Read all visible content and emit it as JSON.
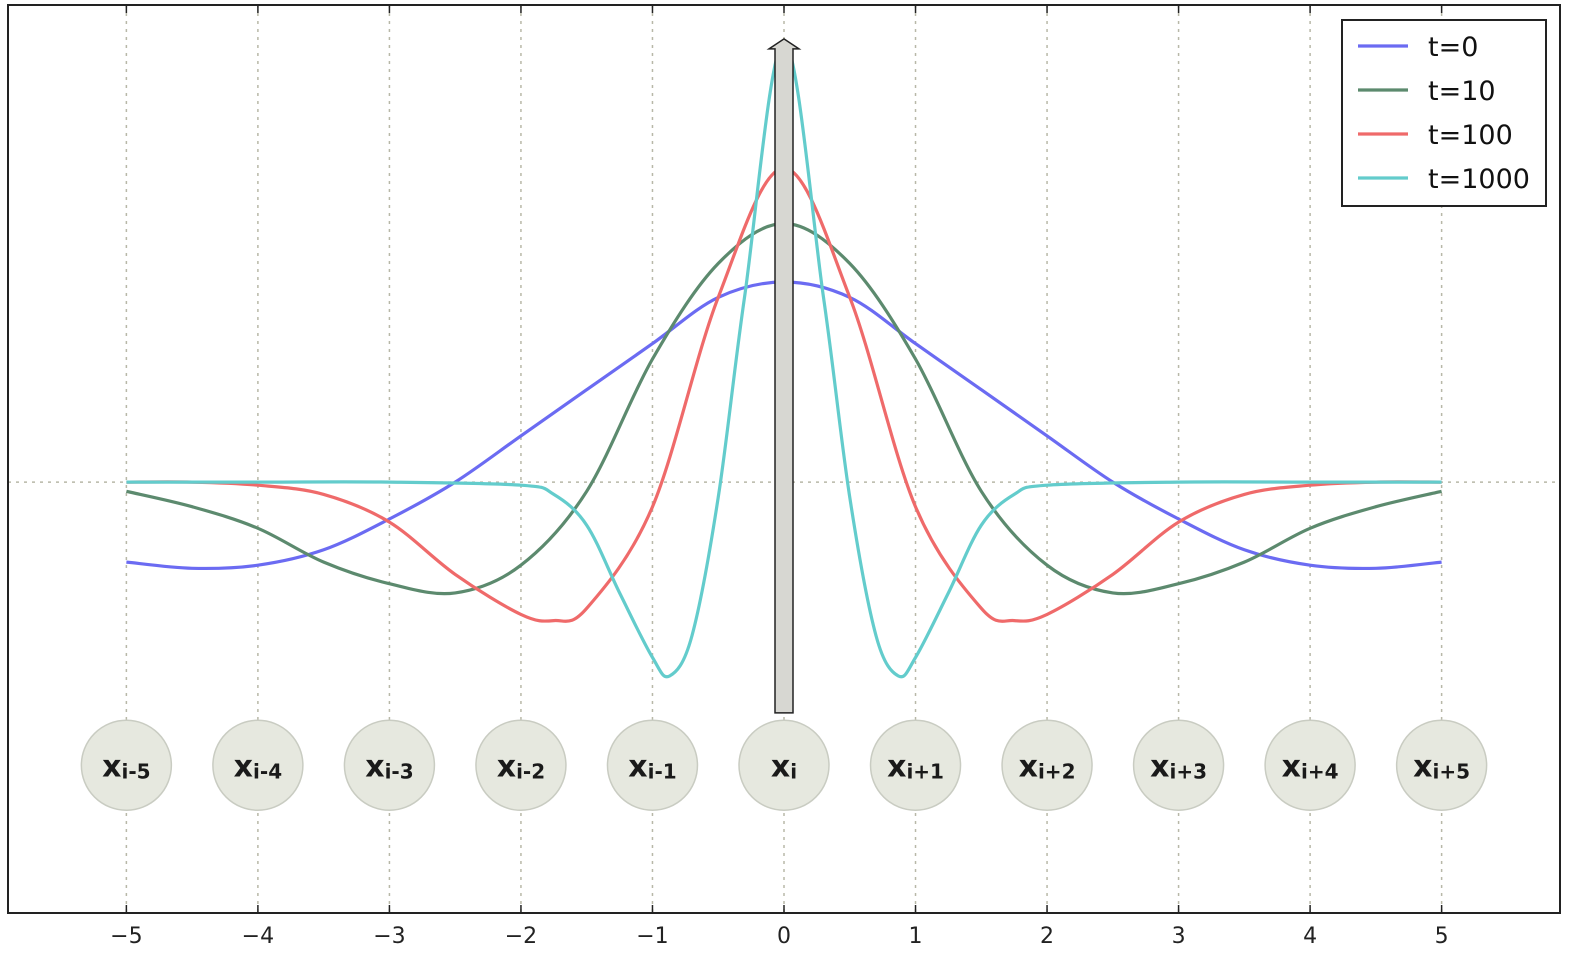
{
  "chart_data": {
    "type": "line",
    "xlim": [
      -5.9,
      5.9
    ],
    "ylim": [
      -1.4,
      1.55
    ],
    "grid": true,
    "legend_position": "top-right",
    "xticks": [
      -5,
      -4,
      -3,
      -2,
      -1,
      0,
      1,
      2,
      3,
      4,
      5
    ],
    "xtick_labels": [
      "−5",
      "−4",
      "−3",
      "−2",
      "−1",
      "0",
      "1",
      "2",
      "3",
      "4",
      "5"
    ],
    "zero_line_y": 0,
    "series": [
      {
        "name": "t=0",
        "color": "#6b6bf2",
        "x": [
          -5,
          -4.5,
          -4,
          -3.5,
          -3,
          -2.5,
          -2,
          -1.5,
          -1,
          -0.5,
          0,
          0.5,
          1,
          1.5,
          2,
          2.5,
          3,
          3.5,
          4,
          4.5,
          5
        ],
        "y": [
          -0.26,
          -0.28,
          -0.27,
          -0.22,
          -0.12,
          0.0,
          0.15,
          0.3,
          0.45,
          0.6,
          0.65,
          0.6,
          0.45,
          0.3,
          0.15,
          0.0,
          -0.12,
          -0.22,
          -0.27,
          -0.28,
          -0.26
        ]
      },
      {
        "name": "t=10",
        "color": "#5c8a6e",
        "x": [
          -5,
          -4.5,
          -4,
          -3.5,
          -3,
          -2.5,
          -2,
          -1.5,
          -1,
          -0.5,
          0,
          0.5,
          1,
          1.5,
          2,
          2.5,
          3,
          3.5,
          4,
          4.5,
          5
        ],
        "y": [
          -0.03,
          -0.08,
          -0.15,
          -0.26,
          -0.33,
          -0.36,
          -0.27,
          -0.03,
          0.4,
          0.71,
          0.84,
          0.71,
          0.4,
          -0.03,
          -0.27,
          -0.36,
          -0.33,
          -0.26,
          -0.15,
          -0.08,
          -0.03
        ]
      },
      {
        "name": "t=100",
        "color": "#ef6a6a",
        "x": [
          -5,
          -4.5,
          -4,
          -3.5,
          -3,
          -2.5,
          -2,
          -1.75,
          -1.5,
          -1,
          -0.5,
          0,
          0.5,
          1,
          1.5,
          1.75,
          2,
          2.5,
          3,
          3.5,
          4,
          4.5,
          5
        ],
        "y": [
          0.0,
          0.0,
          -0.01,
          -0.04,
          -0.13,
          -0.3,
          -0.43,
          -0.45,
          -0.41,
          -0.08,
          0.6,
          1.02,
          0.6,
          -0.08,
          -0.41,
          -0.45,
          -0.43,
          -0.3,
          -0.13,
          -0.04,
          -0.01,
          0.0,
          0.0
        ]
      },
      {
        "name": "t=1000",
        "color": "#63cccc",
        "x": [
          -5,
          -4,
          -3,
          -2,
          -1.75,
          -1.5,
          -1.25,
          -1,
          -0.87,
          -0.7,
          -0.5,
          -0.3,
          0,
          0.3,
          0.5,
          0.7,
          0.87,
          1,
          1.25,
          1.5,
          1.75,
          2,
          3,
          4,
          5
        ],
        "y": [
          0.0,
          0.0,
          0.0,
          -0.01,
          -0.04,
          -0.14,
          -0.36,
          -0.57,
          -0.63,
          -0.5,
          -0.05,
          0.6,
          1.43,
          0.6,
          -0.05,
          -0.5,
          -0.63,
          -0.57,
          -0.36,
          -0.14,
          -0.04,
          -0.01,
          0.0,
          0.0,
          0.0
        ]
      }
    ],
    "arrow": {
      "x": 0,
      "y_from": -0.75,
      "y_to": 1.44,
      "fill": "#d7d7d2",
      "stroke": "#222222"
    },
    "nodes": [
      {
        "x": -5,
        "main": "x",
        "sub": "i-5"
      },
      {
        "x": -4,
        "main": "x",
        "sub": "i-4"
      },
      {
        "x": -3,
        "main": "x",
        "sub": "i-3"
      },
      {
        "x": -2,
        "main": "x",
        "sub": "i-2"
      },
      {
        "x": -1,
        "main": "x",
        "sub": "i-1"
      },
      {
        "x": 0,
        "main": "x",
        "sub": "i"
      },
      {
        "x": 1,
        "main": "x",
        "sub": "i+1"
      },
      {
        "x": 2,
        "main": "x",
        "sub": "i+2"
      },
      {
        "x": 3,
        "main": "x",
        "sub": "i+3"
      },
      {
        "x": 4,
        "main": "x",
        "sub": "i+4"
      },
      {
        "x": 5,
        "main": "x",
        "sub": "i+5"
      }
    ],
    "node_y": -0.92,
    "node_fill": "#e6e8df",
    "node_stroke": "#c9ccc2"
  }
}
